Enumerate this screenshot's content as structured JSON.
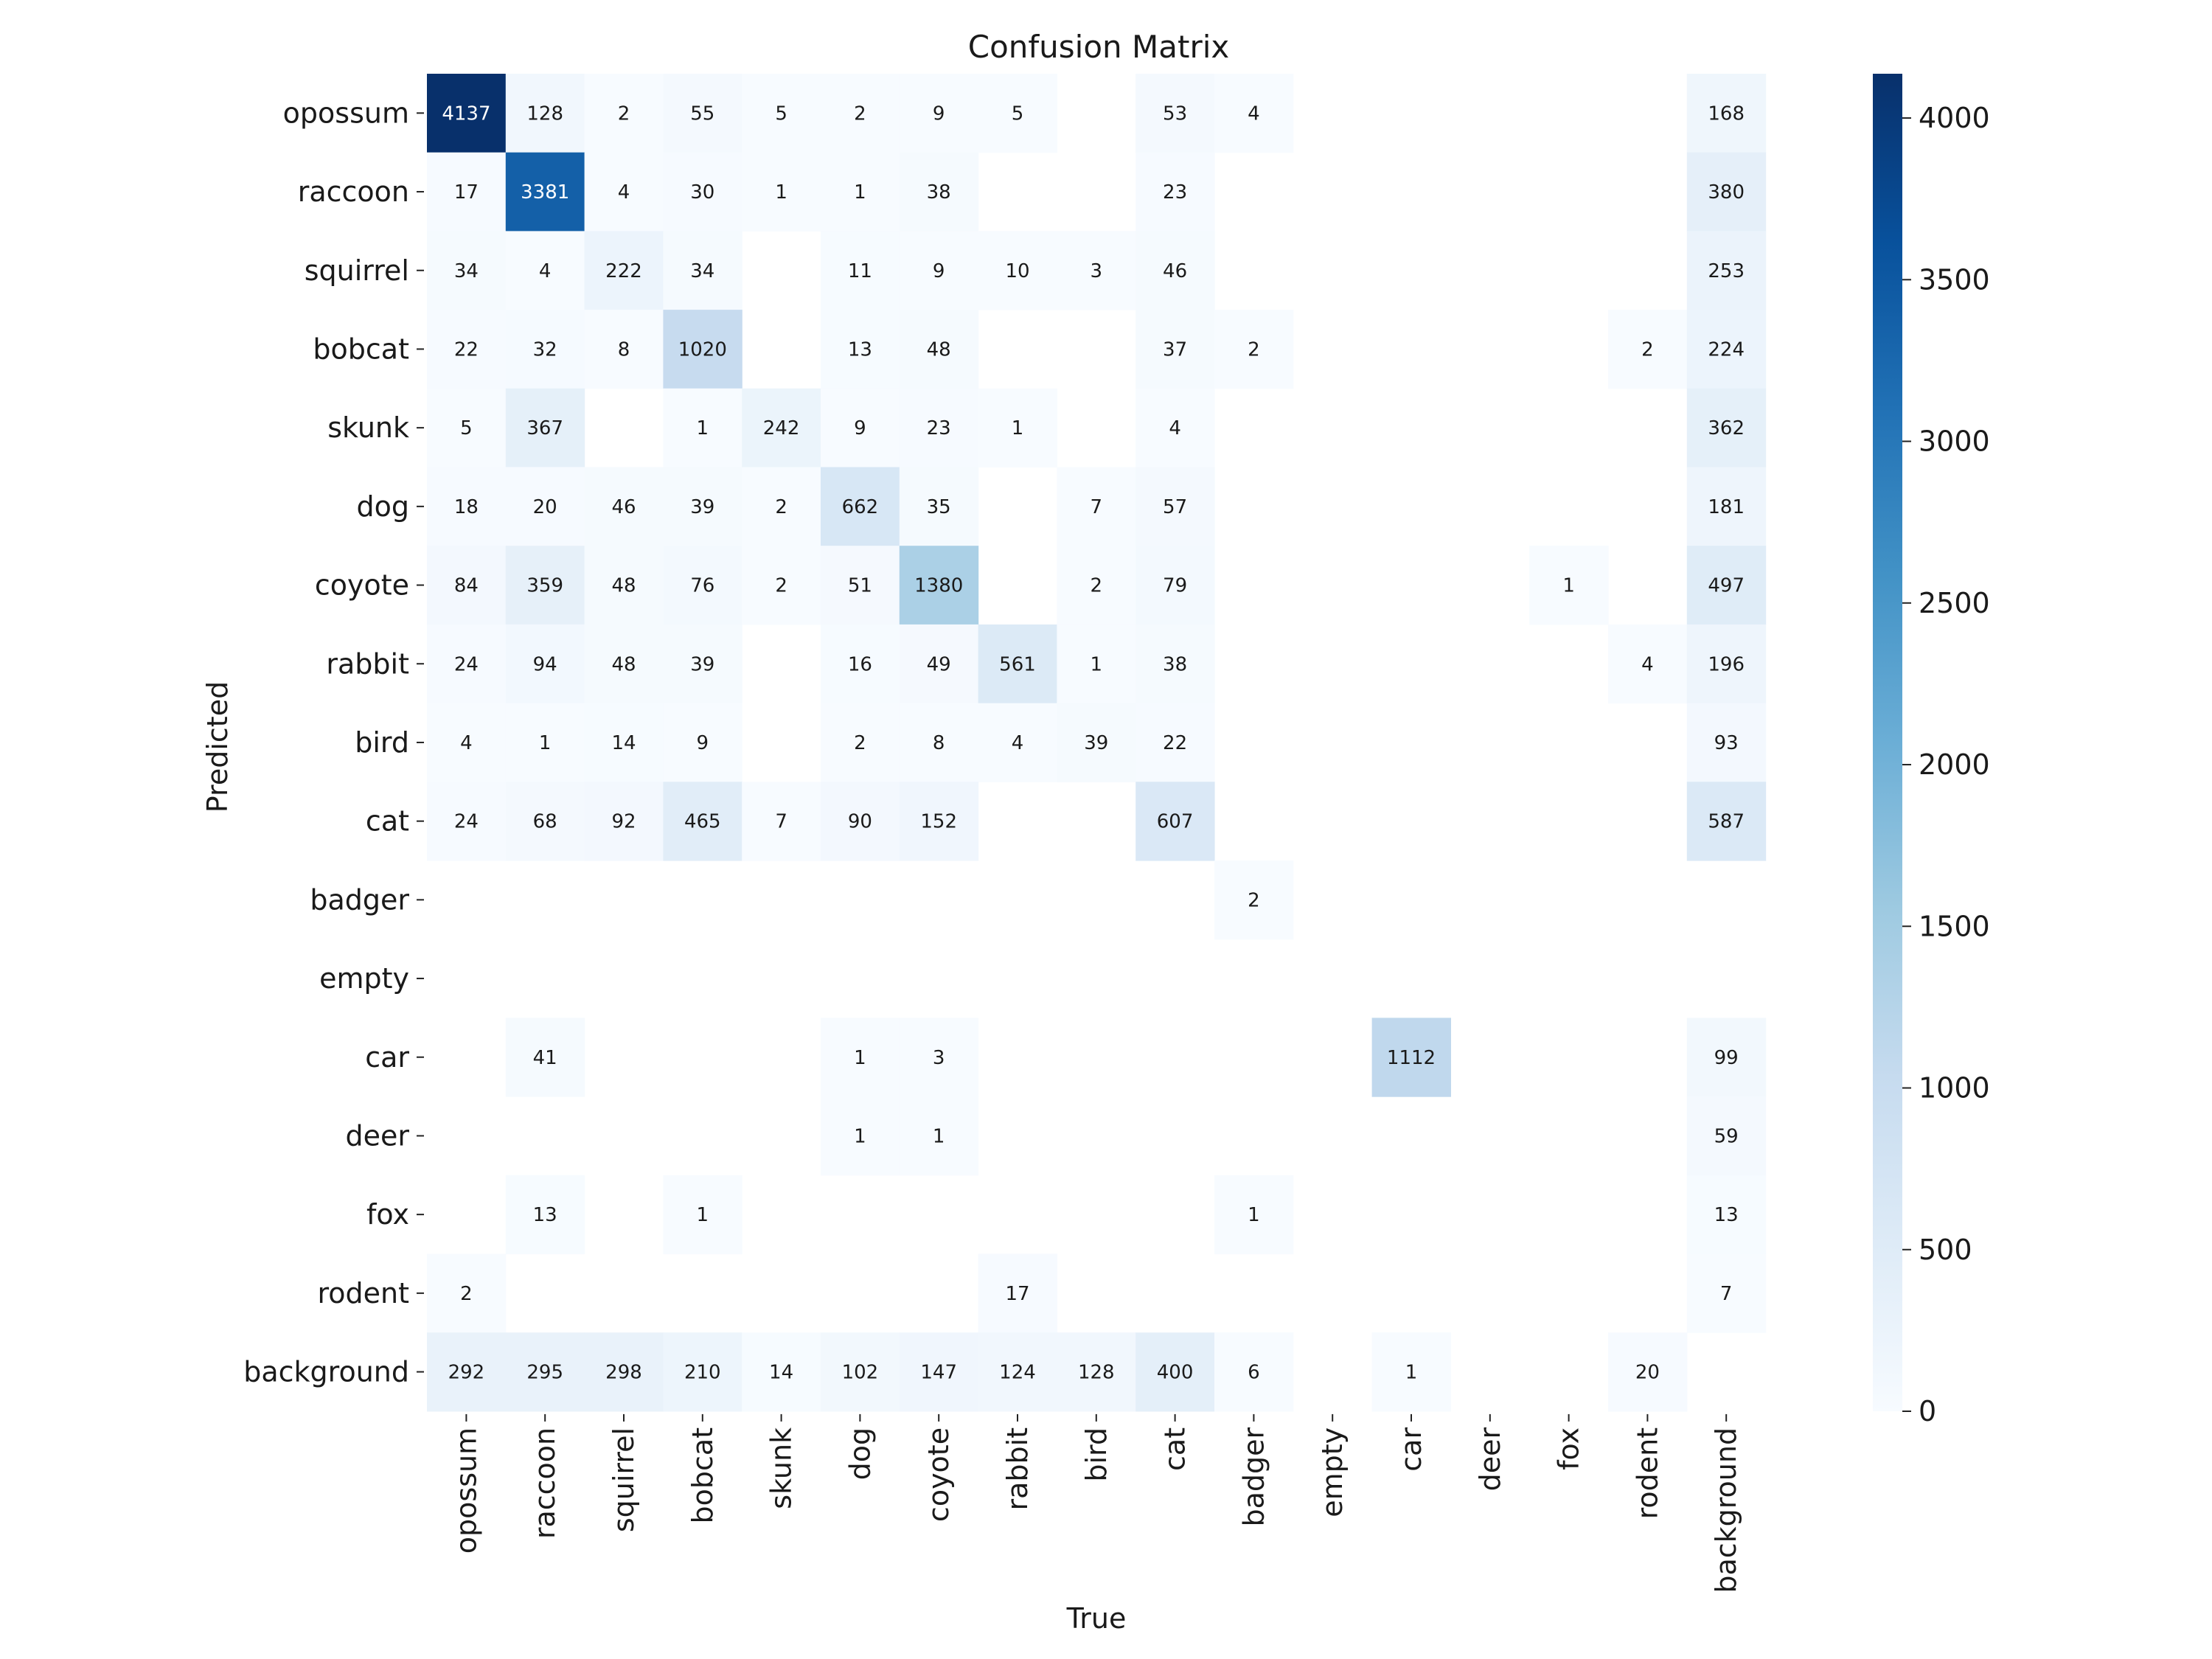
{
  "chart_data": {
    "type": "heatmap",
    "title": "Confusion Matrix",
    "xlabel": "True",
    "ylabel": "Predicted",
    "colormap": "Blues",
    "categories": [
      "opossum",
      "raccoon",
      "squirrel",
      "bobcat",
      "skunk",
      "dog",
      "coyote",
      "rabbit",
      "bird",
      "cat",
      "badger",
      "empty",
      "car",
      "deer",
      "fox",
      "rodent",
      "background"
    ],
    "matrix": [
      [
        4137,
        128,
        2,
        55,
        5,
        2,
        9,
        5,
        null,
        53,
        4,
        null,
        null,
        null,
        null,
        null,
        168
      ],
      [
        17,
        3381,
        4,
        30,
        1,
        1,
        38,
        null,
        null,
        23,
        null,
        null,
        null,
        null,
        null,
        null,
        380
      ],
      [
        34,
        4,
        222,
        34,
        null,
        11,
        9,
        10,
        3,
        46,
        null,
        null,
        null,
        null,
        null,
        null,
        253
      ],
      [
        22,
        32,
        8,
        1020,
        null,
        13,
        48,
        null,
        null,
        37,
        2,
        null,
        null,
        null,
        null,
        2,
        224
      ],
      [
        5,
        367,
        null,
        1,
        242,
        9,
        23,
        1,
        null,
        4,
        null,
        null,
        null,
        null,
        null,
        null,
        362
      ],
      [
        18,
        20,
        46,
        39,
        2,
        662,
        35,
        null,
        7,
        57,
        null,
        null,
        null,
        null,
        null,
        null,
        181
      ],
      [
        84,
        359,
        48,
        76,
        2,
        51,
        1380,
        null,
        2,
        79,
        null,
        null,
        null,
        null,
        1,
        null,
        497
      ],
      [
        24,
        94,
        48,
        39,
        null,
        16,
        49,
        561,
        1,
        38,
        null,
        null,
        null,
        null,
        null,
        4,
        196
      ],
      [
        4,
        1,
        14,
        9,
        null,
        2,
        8,
        4,
        39,
        22,
        null,
        null,
        null,
        null,
        null,
        null,
        93
      ],
      [
        24,
        68,
        92,
        465,
        7,
        90,
        152,
        null,
        null,
        607,
        null,
        null,
        null,
        null,
        null,
        null,
        587
      ],
      [
        null,
        null,
        null,
        null,
        null,
        null,
        null,
        null,
        null,
        null,
        2,
        null,
        null,
        null,
        null,
        null,
        null
      ],
      [
        null,
        null,
        null,
        null,
        null,
        null,
        null,
        null,
        null,
        null,
        null,
        null,
        null,
        null,
        null,
        null,
        null
      ],
      [
        null,
        41,
        null,
        null,
        null,
        1,
        3,
        null,
        null,
        null,
        null,
        null,
        1112,
        null,
        null,
        null,
        99
      ],
      [
        null,
        null,
        null,
        null,
        null,
        1,
        1,
        null,
        null,
        null,
        null,
        null,
        null,
        null,
        null,
        null,
        59
      ],
      [
        null,
        13,
        null,
        1,
        null,
        null,
        null,
        null,
        null,
        null,
        1,
        null,
        null,
        null,
        null,
        null,
        13
      ],
      [
        2,
        null,
        null,
        null,
        null,
        null,
        null,
        17,
        null,
        null,
        null,
        null,
        null,
        null,
        null,
        null,
        7
      ],
      [
        292,
        295,
        298,
        210,
        14,
        102,
        147,
        124,
        128,
        400,
        6,
        null,
        1,
        null,
        null,
        20,
        null
      ]
    ],
    "colorbar": {
      "min": 0,
      "max": 4137,
      "ticks": [
        0,
        500,
        1000,
        1500,
        2000,
        2500,
        3000,
        3500,
        4000
      ]
    }
  }
}
